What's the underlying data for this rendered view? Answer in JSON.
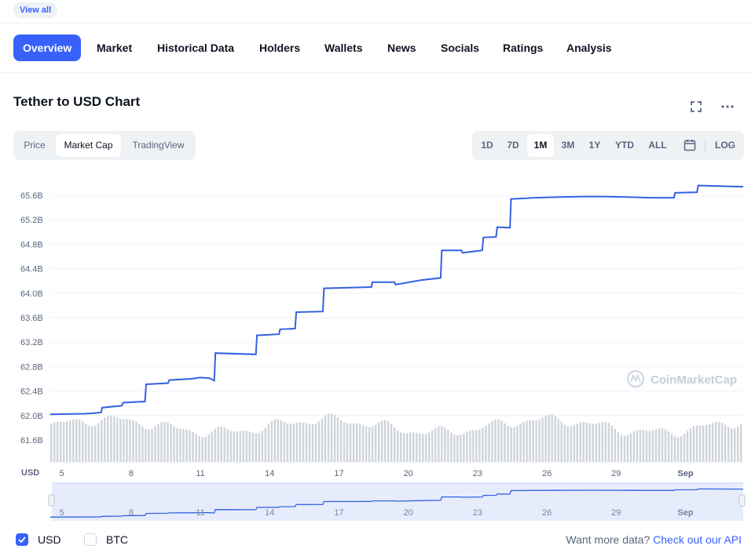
{
  "topbar": {
    "view_all": "View all"
  },
  "tabs": [
    "Overview",
    "Market",
    "Historical Data",
    "Holders",
    "Wallets",
    "News",
    "Socials",
    "Ratings",
    "Analysis"
  ],
  "chart_title": "Tether to USD Chart",
  "mode_tabs": [
    "Price",
    "Market Cap",
    "TradingView"
  ],
  "active_mode": "Market Cap",
  "ranges": [
    "1D",
    "7D",
    "1M",
    "3M",
    "1Y",
    "YTD",
    "ALL"
  ],
  "active_range": "1M",
  "log_label": "LOG",
  "watermark": "CoinMarketCap",
  "currency_label": "USD",
  "legend": {
    "usd": "USD",
    "btc": "BTC",
    "usd_checked": true,
    "btc_checked": false
  },
  "api": {
    "prefix": "Want more data?",
    "link": "Check out our API"
  },
  "colors": {
    "accent": "#3861fb",
    "line": "#3461e0",
    "volume": "#cfd3da",
    "navigator_fill": "#e6ecfc"
  },
  "chart_data": {
    "type": "line",
    "title": "Tether to USD Chart",
    "ylabel": "USD",
    "ylim": [
      61.6,
      65.8
    ],
    "y_ticks": [
      "65.6B",
      "65.2B",
      "64.8B",
      "64.4B",
      "64.0B",
      "63.6B",
      "63.2B",
      "62.8B",
      "62.4B",
      "62.0B",
      "61.6B"
    ],
    "y_tick_values": [
      65.6,
      65.2,
      64.8,
      64.4,
      64.0,
      63.6,
      63.2,
      62.8,
      62.4,
      62.0,
      61.6
    ],
    "x_ticks": [
      "5",
      "8",
      "11",
      "14",
      "17",
      "20",
      "23",
      "26",
      "29",
      "Sep"
    ],
    "x_tick_days": [
      5,
      8,
      11,
      14,
      17,
      20,
      23,
      26,
      29,
      32
    ],
    "xlim_days": [
      4.5,
      34.5
    ],
    "series": [
      {
        "name": "Market Cap",
        "unit": "B USD",
        "points": [
          [
            4.5,
            62.02
          ],
          [
            6.0,
            62.03
          ],
          [
            6.4,
            62.04
          ],
          [
            6.7,
            62.05
          ],
          [
            6.75,
            62.13
          ],
          [
            7.6,
            62.16
          ],
          [
            7.65,
            62.21
          ],
          [
            8.6,
            62.23
          ],
          [
            8.65,
            62.51
          ],
          [
            9.6,
            62.53
          ],
          [
            9.65,
            62.58
          ],
          [
            10.6,
            62.6
          ],
          [
            11.0,
            62.62
          ],
          [
            11.4,
            62.61
          ],
          [
            11.6,
            62.57
          ],
          [
            11.65,
            63.02
          ],
          [
            13.4,
            63.0
          ],
          [
            13.45,
            63.31
          ],
          [
            14.4,
            63.33
          ],
          [
            14.45,
            63.41
          ],
          [
            15.1,
            63.42
          ],
          [
            15.15,
            63.69
          ],
          [
            16.3,
            63.7
          ],
          [
            16.35,
            64.08
          ],
          [
            18.4,
            64.1
          ],
          [
            18.45,
            64.18
          ],
          [
            19.4,
            64.18
          ],
          [
            19.45,
            64.14
          ],
          [
            20.5,
            64.21
          ],
          [
            21.4,
            64.25
          ],
          [
            21.45,
            64.7
          ],
          [
            22.3,
            64.7
          ],
          [
            22.35,
            64.66
          ],
          [
            23.2,
            64.7
          ],
          [
            23.25,
            64.91
          ],
          [
            23.8,
            64.92
          ],
          [
            23.85,
            65.08
          ],
          [
            24.4,
            65.07
          ],
          [
            24.45,
            65.54
          ],
          [
            25.5,
            65.56
          ],
          [
            26.5,
            65.57
          ],
          [
            27.5,
            65.58
          ],
          [
            28.5,
            65.58
          ],
          [
            29.5,
            65.57
          ],
          [
            30.5,
            65.56
          ],
          [
            31.5,
            65.56
          ],
          [
            31.55,
            65.64
          ],
          [
            32.5,
            65.65
          ],
          [
            32.55,
            65.76
          ],
          [
            33.5,
            65.75
          ],
          [
            34.5,
            65.74
          ]
        ]
      }
    ]
  }
}
